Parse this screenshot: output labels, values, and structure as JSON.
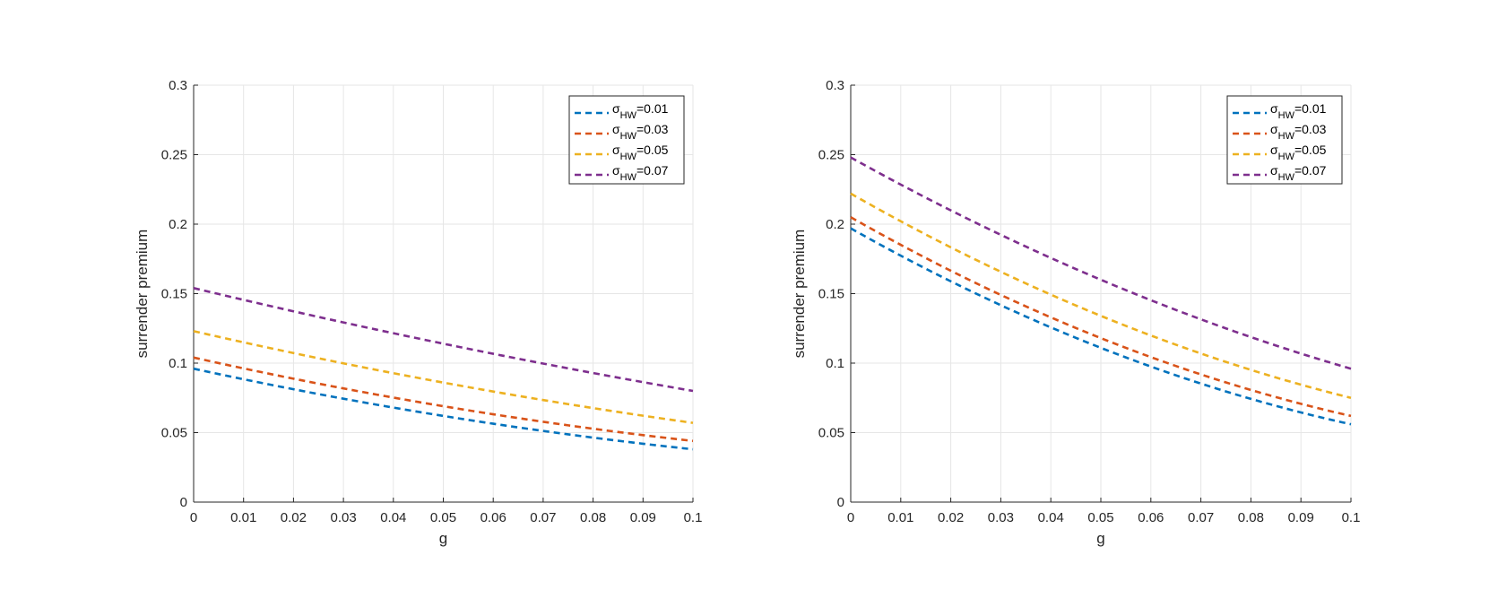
{
  "chart_data": [
    {
      "type": "line",
      "xlabel": "g",
      "ylabel": "surrender premium",
      "xlim": [
        0,
        0.1
      ],
      "ylim": [
        0,
        0.3
      ],
      "xticks": [
        0,
        0.01,
        0.02,
        0.03,
        0.04,
        0.05,
        0.06,
        0.07,
        0.08,
        0.09,
        0.1
      ],
      "xtick_labels": [
        "0",
        "0.01",
        "0.02",
        "0.03",
        "0.04",
        "0.05",
        "0.06",
        "0.07",
        "0.08",
        "0.09",
        "0.1"
      ],
      "yticks": [
        0,
        0.05,
        0.1,
        0.15,
        0.2,
        0.25,
        0.3
      ],
      "ytick_labels": [
        "0",
        "0.05",
        "0.1",
        "0.15",
        "0.2",
        "0.25",
        "0.3"
      ],
      "grid": true,
      "legend_position": "top-right",
      "series": [
        {
          "name": "σHW=0.01",
          "symbol": "σ",
          "sub": "HW",
          "suffix": "=0.01",
          "color": "#0072BD",
          "x": [
            0,
            0.05,
            0.1
          ],
          "y": [
            0.096,
            0.062,
            0.038
          ]
        },
        {
          "name": "σHW=0.03",
          "symbol": "σ",
          "sub": "HW",
          "suffix": "=0.03",
          "color": "#D95319",
          "x": [
            0,
            0.05,
            0.1
          ],
          "y": [
            0.104,
            0.069,
            0.044
          ]
        },
        {
          "name": "σHW=0.05",
          "symbol": "σ",
          "sub": "HW",
          "suffix": "=0.05",
          "color": "#EDB120",
          "x": [
            0,
            0.05,
            0.1
          ],
          "y": [
            0.123,
            0.086,
            0.057
          ]
        },
        {
          "name": "σHW=0.07",
          "symbol": "σ",
          "sub": "HW",
          "suffix": "=0.07",
          "color": "#7E2F8E",
          "x": [
            0,
            0.05,
            0.1
          ],
          "y": [
            0.154,
            0.114,
            0.08
          ]
        }
      ]
    },
    {
      "type": "line",
      "xlabel": "g",
      "ylabel": "surrender premium",
      "xlim": [
        0,
        0.1
      ],
      "ylim": [
        0,
        0.3
      ],
      "xticks": [
        0,
        0.01,
        0.02,
        0.03,
        0.04,
        0.05,
        0.06,
        0.07,
        0.08,
        0.09,
        0.1
      ],
      "xtick_labels": [
        "0",
        "0.01",
        "0.02",
        "0.03",
        "0.04",
        "0.05",
        "0.06",
        "0.07",
        "0.08",
        "0.09",
        "0.1"
      ],
      "yticks": [
        0,
        0.05,
        0.1,
        0.15,
        0.2,
        0.25,
        0.3
      ],
      "ytick_labels": [
        "0",
        "0.05",
        "0.1",
        "0.15",
        "0.2",
        "0.25",
        "0.3"
      ],
      "grid": true,
      "legend_position": "top-right",
      "series": [
        {
          "name": "σHW=0.01",
          "symbol": "σ",
          "sub": "HW",
          "suffix": "=0.01",
          "color": "#0072BD",
          "x": [
            0,
            0.05,
            0.1
          ],
          "y": [
            0.197,
            0.111,
            0.056
          ]
        },
        {
          "name": "σHW=0.03",
          "symbol": "σ",
          "sub": "HW",
          "suffix": "=0.03",
          "color": "#D95319",
          "x": [
            0,
            0.05,
            0.1
          ],
          "y": [
            0.205,
            0.118,
            0.062
          ]
        },
        {
          "name": "σHW=0.05",
          "symbol": "σ",
          "sub": "HW",
          "suffix": "=0.05",
          "color": "#EDB120",
          "x": [
            0,
            0.05,
            0.1
          ],
          "y": [
            0.222,
            0.134,
            0.075
          ]
        },
        {
          "name": "σHW=0.07",
          "symbol": "σ",
          "sub": "HW",
          "suffix": "=0.07",
          "color": "#7E2F8E",
          "x": [
            0,
            0.05,
            0.1
          ],
          "y": [
            0.248,
            0.16,
            0.096
          ]
        }
      ]
    }
  ]
}
